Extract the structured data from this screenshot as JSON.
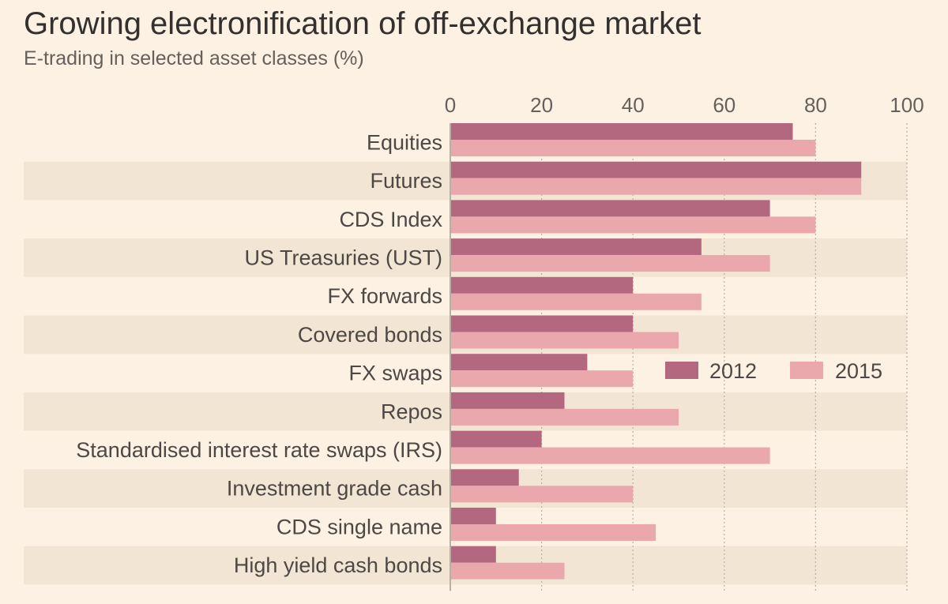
{
  "colors": {
    "background": "#fdf1e3",
    "band": "#f2e5d3",
    "gridline": "#b9afa4",
    "axis": "#b9afa4",
    "series_2012": "#b36880",
    "series_2015": "#eaa8ac"
  },
  "chart_data": {
    "type": "bar",
    "orientation": "horizontal",
    "title": "Growing electronification of off-exchange market",
    "subtitle": "E-trading in selected asset classes (%)",
    "xlabel": "",
    "ylabel": "",
    "xlim": [
      0,
      100
    ],
    "xticks": [
      0,
      20,
      40,
      60,
      80,
      100
    ],
    "xtick_labels": [
      "0",
      "20",
      "40",
      "60",
      "80",
      "100"
    ],
    "categories": [
      "Equities",
      "Futures",
      "CDS Index",
      "US Treasuries (UST)",
      "FX forwards",
      "Covered bonds",
      "FX swaps",
      "Repos",
      "Standardised interest rate swaps (IRS)",
      "Investment grade cash",
      "CDS single name",
      "High yield cash bonds"
    ],
    "series": [
      {
        "name": "2012",
        "values": [
          75,
          90,
          70,
          55,
          40,
          40,
          30,
          25,
          20,
          15,
          10,
          10
        ]
      },
      {
        "name": "2015",
        "values": [
          80,
          90,
          80,
          70,
          55,
          50,
          40,
          50,
          70,
          40,
          45,
          25
        ]
      }
    ],
    "legend_position": "middle-right",
    "grid": true
  }
}
